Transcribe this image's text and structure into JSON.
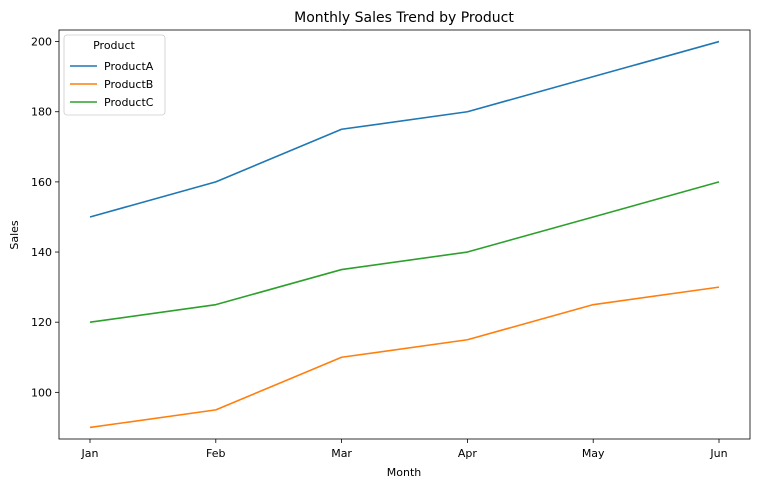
{
  "chart_data": {
    "type": "line",
    "title": "Monthly Sales Trend by Product",
    "xlabel": "Month",
    "ylabel": "Sales",
    "categories": [
      "Jan",
      "Feb",
      "Mar",
      "Apr",
      "May",
      "Jun"
    ],
    "ylim": [
      86.7,
      203.3
    ],
    "yticks": [
      100,
      120,
      140,
      160,
      180,
      200
    ],
    "grid": false,
    "legend": {
      "title": "Product",
      "placement": "top-left"
    },
    "series": [
      {
        "name": "ProductA",
        "color": "#1f77b4",
        "values": [
          150,
          160,
          175,
          180,
          190,
          200
        ]
      },
      {
        "name": "ProductB",
        "color": "#ff7f0e",
        "values": [
          90,
          95,
          110,
          115,
          125,
          130
        ]
      },
      {
        "name": "ProductC",
        "color": "#2ca02c",
        "values": [
          120,
          125,
          135,
          140,
          150,
          160
        ]
      }
    ]
  }
}
